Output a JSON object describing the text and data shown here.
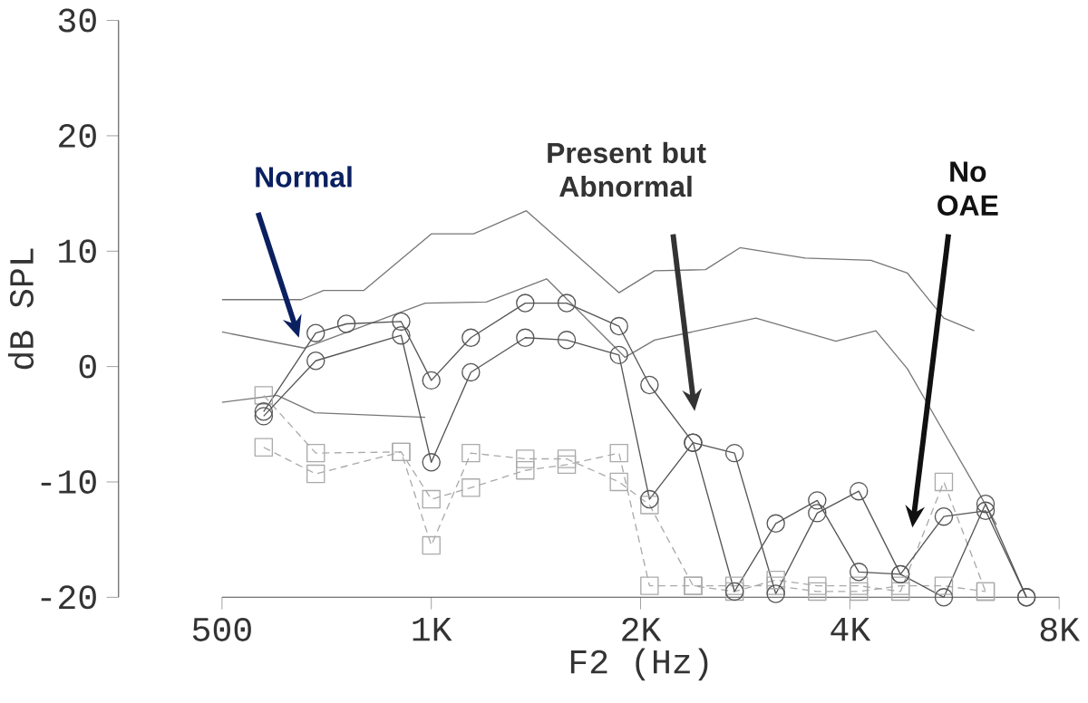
{
  "chart_data": {
    "type": "line",
    "xlabel": "F2 (Hz)",
    "ylabel": "dB SPL",
    "log": "x",
    "xlim": [
      500,
      8000
    ],
    "ylim": [
      -20,
      30
    ],
    "xticks": [
      500,
      {
        "value": 1000,
        "label": "1K"
      },
      {
        "value": 2000,
        "label": "2K"
      },
      {
        "value": 4000,
        "label": "4K"
      },
      {
        "value": 8000,
        "label": "8K"
      }
    ],
    "yticks": [
      -20,
      -10,
      0,
      10,
      20,
      30
    ],
    "grid": false,
    "series": [
      {
        "color": "#777777",
        "marker": "none",
        "line_style": "solid",
        "x": [
          500,
          650,
          700,
          800,
          1000,
          1150,
          1370,
          1862,
          2095,
          2480,
          2780,
          3450,
          4290,
          4840,
          5460,
          6040
        ],
        "values": [
          5.8,
          5.8,
          6.6,
          6.6,
          11.5,
          11.5,
          13.5,
          6.4,
          8.3,
          8.4,
          10.3,
          9.4,
          9.2,
          8.1,
          4.2,
          3.1
        ]
      },
      {
        "color": "#777777",
        "marker": "none",
        "line_style": "solid",
        "x": [
          500,
          657,
          980,
          1200,
          1465,
          1900,
          2095,
          2930,
          3820,
          4360,
          4840,
          6140,
          6500
        ],
        "values": [
          3,
          1.6,
          5.5,
          5.6,
          7.6,
          0.8,
          2.3,
          4.2,
          2.2,
          3.1,
          -0.2,
          -11,
          -13.7
        ]
      },
      {
        "color": "#777777",
        "marker": "none",
        "line_style": "solid",
        "x": [
          500,
          600,
          680,
          980
        ],
        "values": [
          -3.1,
          -2.5,
          -4,
          -4.4
        ]
      },
      {
        "color": "#aaaaaa",
        "marker": "square",
        "line_style": "dashed",
        "x": [
          574,
          682,
          905,
          1000,
          1140,
          1365,
          1566,
          1862,
          2060,
          2380,
          2730,
          3130,
          3590,
          4120,
          4730,
          5460,
          6270
        ],
        "values": [
          -7,
          -9.3,
          -7.4,
          -11.5,
          -10.5,
          -9,
          -8.5,
          -7.5,
          -19,
          -19,
          -19,
          -19,
          -19.5,
          -19.5,
          -19,
          -19,
          -19.5
        ]
      },
      {
        "color": "#aaaaaa",
        "marker": "square",
        "line_style": "dashed",
        "x": [
          574,
          682,
          905,
          1000,
          1140,
          1365,
          1566,
          1862,
          2060,
          2380,
          2730,
          3130,
          3590,
          4120,
          4730,
          5460,
          6270
        ],
        "values": [
          -2.5,
          -7.5,
          -7.4,
          -15.5,
          -7.5,
          -8,
          -8,
          -10,
          -12,
          -19,
          -19.5,
          -18.5,
          -19,
          -19,
          -19.5,
          -10,
          -19.5
        ]
      },
      {
        "color": "#555555",
        "marker": "circle",
        "line_style": "solid",
        "x": [
          574,
          682,
          755,
          905,
          1000,
          1140,
          1365,
          1566,
          1862,
          2060,
          2380,
          2730,
          3130,
          3590,
          4120,
          4730,
          5460,
          6270,
          7180
        ],
        "values": [
          -3.9,
          2.9,
          3.7,
          3.9,
          -1.2,
          2.5,
          5.5,
          5.5,
          3.5,
          -1.6,
          -6.6,
          -7.5,
          -19.7,
          -12.7,
          -10.8,
          -18,
          -20,
          -11.9,
          -20
        ]
      },
      {
        "color": "#555555",
        "marker": "circle",
        "line_style": "solid",
        "x": [
          574,
          682,
          905,
          1000,
          1140,
          1365,
          1566,
          1862,
          2060,
          2380,
          2730,
          3130,
          3590,
          4120,
          4730,
          5460,
          6270,
          7180
        ],
        "values": [
          -4.3,
          0.5,
          2.7,
          -8.3,
          -0.5,
          2.5,
          2.3,
          1.0,
          -11.5,
          -6.6,
          -19.5,
          -13.6,
          -11.6,
          -17.8,
          -18,
          -13,
          -12.5,
          -20
        ]
      }
    ],
    "annotations": [
      "Normal",
      "Present but Abnormal",
      "No OAE"
    ]
  }
}
